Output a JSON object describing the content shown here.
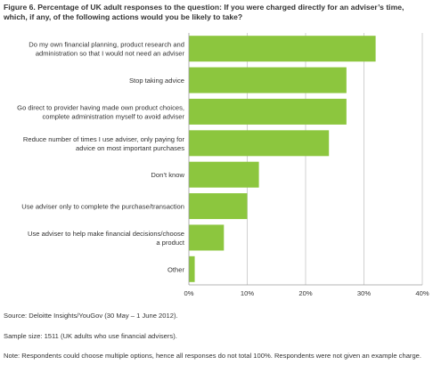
{
  "colors": {
    "bar": "#8cc63e",
    "grid": "#bdbdbd",
    "axis": "#9e9e9e",
    "text": "#333333"
  },
  "chart_data": {
    "type": "bar",
    "orientation": "horizontal",
    "title": "Figure 6. Percentage of UK adult responses to the question: If you were charged directly for an adviser’s time, which, if any, of the following actions would you be likely to take?",
    "categories": [
      [
        "Do my own financial planning, product research and",
        "administration so that I would not need an adviser"
      ],
      [
        "Stop taking advice"
      ],
      [
        "Go direct to provider having made own product choices,",
        "complete administration myself to avoid adviser"
      ],
      [
        "Reduce number of times I use adviser, only paying for",
        "advice on most important purchases"
      ],
      [
        "Don’t know"
      ],
      [
        "Use adviser only to complete the purchase/transaction"
      ],
      [
        "Use adviser to help make financial decisions/choose",
        "a product"
      ],
      [
        "Other"
      ]
    ],
    "values": [
      32,
      27,
      27,
      24,
      12,
      10,
      6,
      1
    ],
    "unit": "%",
    "xlim": [
      0,
      40
    ],
    "x_ticks": [
      "0%",
      "10%",
      "20%",
      "30%",
      "40%"
    ],
    "grid": true
  },
  "notes": {
    "source": "Source: Deloitte Insights/YouGov (30 May – 1 June 2012).",
    "sample": "Sample size: 1511 (UK adults who use financial advisers).",
    "footnote": "Note: Respondents could choose multiple options, hence all responses do not total 100%. Respondents were not given an example charge."
  }
}
